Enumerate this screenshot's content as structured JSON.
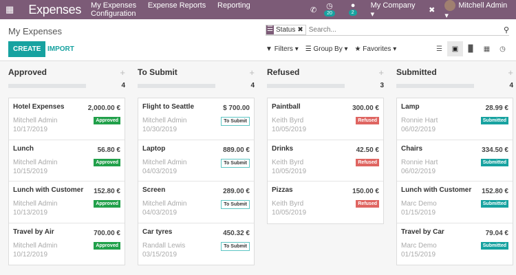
{
  "nav": {
    "app": "Expenses",
    "menu": [
      "My Expenses",
      "Expense Reports",
      "Reporting",
      "Configuration"
    ],
    "activities_count": "20",
    "messages_count": "2",
    "company": "My Company",
    "user": "Mitchell Admin"
  },
  "control": {
    "title": "My Expenses",
    "create": "CREATE",
    "import": "IMPORT",
    "facet": "Status",
    "search_placeholder": "Search...",
    "filters": "Filters",
    "group_by": "Group By",
    "favorites": "Favorites",
    "active_view": "kanban"
  },
  "colors": {
    "brand": "#7c5b77",
    "accent": "#17a2a0",
    "approved": "#21a04a",
    "refused": "#df6561"
  },
  "columns": [
    {
      "title": "Approved",
      "count": "4",
      "cards": [
        {
          "name": "Hotel Expenses",
          "amount": "2,000.00 €",
          "employee": "Mitchell Admin",
          "date": "10/17/2019",
          "status": "Approved",
          "kind": "approved"
        },
        {
          "name": "Lunch",
          "amount": "56.80 €",
          "employee": "Mitchell Admin",
          "date": "10/15/2019",
          "status": "Approved",
          "kind": "approved"
        },
        {
          "name": "Lunch with Customer",
          "amount": "152.80 €",
          "employee": "Mitchell Admin",
          "date": "10/13/2019",
          "status": "Approved",
          "kind": "approved"
        },
        {
          "name": "Travel by Air",
          "amount": "700.00 €",
          "employee": "Mitchell Admin",
          "date": "10/12/2019",
          "status": "Approved",
          "kind": "approved"
        }
      ]
    },
    {
      "title": "To Submit",
      "count": "4",
      "cards": [
        {
          "name": "Flight to Seattle",
          "amount": "$ 700.00",
          "employee": "Mitchell Admin",
          "date": "10/30/2019",
          "status": "To Submit",
          "kind": "to_submit"
        },
        {
          "name": "Laptop",
          "amount": "889.00 €",
          "employee": "Mitchell Admin",
          "date": "04/03/2019",
          "status": "To Submit",
          "kind": "to_submit"
        },
        {
          "name": "Screen",
          "amount": "289.00 €",
          "employee": "Mitchell Admin",
          "date": "04/03/2019",
          "status": "To Submit",
          "kind": "to_submit"
        },
        {
          "name": "Car tyres",
          "amount": "450.32 €",
          "employee": "Randall Lewis",
          "date": "03/15/2019",
          "status": "To Submit",
          "kind": "to_submit"
        }
      ]
    },
    {
      "title": "Refused",
      "count": "3",
      "cards": [
        {
          "name": "Paintball",
          "amount": "300.00 €",
          "employee": "Keith Byrd",
          "date": "10/05/2019",
          "status": "Refused",
          "kind": "refused"
        },
        {
          "name": "Drinks",
          "amount": "42.50 €",
          "employee": "Keith Byrd",
          "date": "10/05/2019",
          "status": "Refused",
          "kind": "refused"
        },
        {
          "name": "Pizzas",
          "amount": "150.00 €",
          "employee": "Keith Byrd",
          "date": "10/05/2019",
          "status": "Refused",
          "kind": "refused"
        }
      ]
    },
    {
      "title": "Submitted",
      "count": "4",
      "cards": [
        {
          "name": "Lamp",
          "amount": "28.99 €",
          "employee": "Ronnie Hart",
          "date": "06/02/2019",
          "status": "Submitted",
          "kind": "submitted"
        },
        {
          "name": "Chairs",
          "amount": "334.50 €",
          "employee": "Ronnie Hart",
          "date": "06/02/2019",
          "status": "Submitted",
          "kind": "submitted"
        },
        {
          "name": "Lunch with Customer",
          "amount": "152.80 €",
          "employee": "Marc Demo",
          "date": "01/15/2019",
          "status": "Submitted",
          "kind": "submitted"
        },
        {
          "name": "Travel by Car",
          "amount": "79.04 €",
          "employee": "Marc Demo",
          "date": "01/15/2019",
          "status": "Submitted",
          "kind": "submitted"
        }
      ]
    }
  ]
}
